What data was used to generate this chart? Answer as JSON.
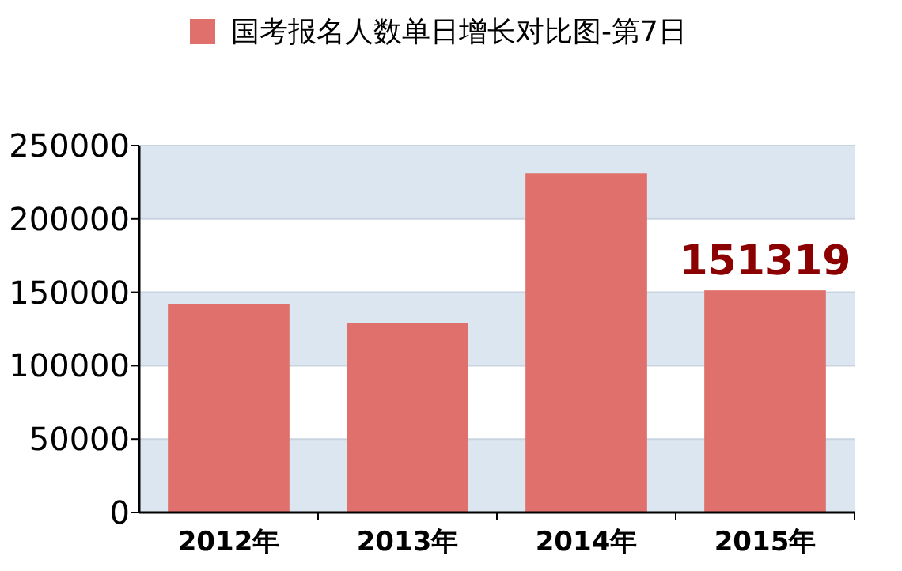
{
  "chart_data": {
    "type": "bar",
    "categories": [
      "2012年",
      "2013年",
      "2014年",
      "2015年"
    ],
    "series": [
      {
        "name": "国考报名人数单日增长对比图-第7日",
        "color": "#e0706c",
        "values": [
          142000,
          129000,
          231000,
          151319
        ]
      }
    ],
    "value_labels": [
      null,
      null,
      null,
      "151319"
    ],
    "ylim": [
      0,
      250000
    ],
    "yticks": [
      0,
      50000,
      100000,
      150000,
      200000,
      250000
    ],
    "grid": "y",
    "legend": "top"
  }
}
